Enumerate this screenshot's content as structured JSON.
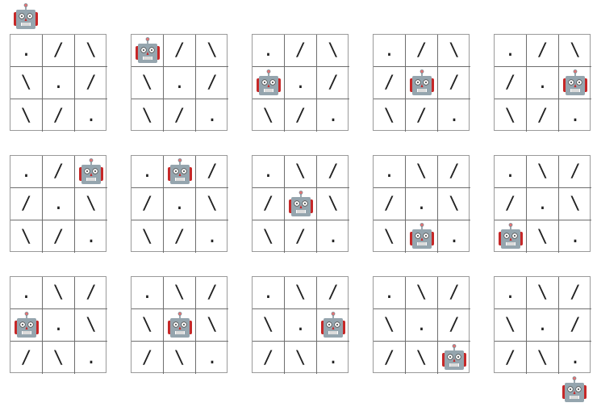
{
  "colors": {
    "grid_line": "#6e6e6e",
    "robot_head": "#95a5ae",
    "robot_ears": "#c62828",
    "text": "#222222"
  },
  "icon": "robot-icon",
  "boards": [
    {
      "cells": [
        [
          ".",
          "/",
          "\\"
        ],
        [
          "\\",
          ".",
          "/"
        ],
        [
          "\\",
          "/",
          "."
        ]
      ],
      "robot": {
        "row": -1,
        "col": 0
      }
    },
    {
      "cells": [
        [
          ".",
          "/",
          "\\"
        ],
        [
          "\\",
          ".",
          "/"
        ],
        [
          "\\",
          "/",
          "."
        ]
      ],
      "robot": {
        "row": 0,
        "col": 0
      }
    },
    {
      "cells": [
        [
          ".",
          "/",
          "\\"
        ],
        [
          "\\",
          ".",
          "/"
        ],
        [
          "\\",
          "/",
          "."
        ]
      ],
      "robot": {
        "row": 1,
        "col": 0
      }
    },
    {
      "cells": [
        [
          ".",
          "/",
          "\\"
        ],
        [
          "/",
          ".",
          "/"
        ],
        [
          "\\",
          "/",
          "."
        ]
      ],
      "robot": {
        "row": 1,
        "col": 1
      }
    },
    {
      "cells": [
        [
          ".",
          "/",
          "\\"
        ],
        [
          "/",
          ".",
          "/"
        ],
        [
          "\\",
          "/",
          "."
        ]
      ],
      "robot": {
        "row": 1,
        "col": 2
      }
    },
    {
      "cells": [
        [
          ".",
          "/",
          "\\"
        ],
        [
          "/",
          ".",
          "\\"
        ],
        [
          "\\",
          "/",
          "."
        ]
      ],
      "robot": {
        "row": 0,
        "col": 2
      }
    },
    {
      "cells": [
        [
          ".",
          "\\",
          "/"
        ],
        [
          "/",
          ".",
          "\\"
        ],
        [
          "\\",
          "/",
          "."
        ]
      ],
      "robot": {
        "row": 0,
        "col": 1
      }
    },
    {
      "cells": [
        [
          ".",
          "\\",
          "/"
        ],
        [
          "/",
          ".",
          "\\"
        ],
        [
          "\\",
          "/",
          "."
        ]
      ],
      "robot": {
        "row": 1,
        "col": 1
      }
    },
    {
      "cells": [
        [
          ".",
          "\\",
          "/"
        ],
        [
          "/",
          ".",
          "\\"
        ],
        [
          "\\",
          "/",
          "."
        ]
      ],
      "robot": {
        "row": 2,
        "col": 1
      }
    },
    {
      "cells": [
        [
          ".",
          "\\",
          "/"
        ],
        [
          "/",
          ".",
          "\\"
        ],
        [
          "/",
          "\\",
          "."
        ]
      ],
      "robot": {
        "row": 2,
        "col": 0
      }
    },
    {
      "cells": [
        [
          ".",
          "\\",
          "/"
        ],
        [
          "/",
          ".",
          "\\"
        ],
        [
          "/",
          "\\",
          "."
        ]
      ],
      "robot": {
        "row": 1,
        "col": 0
      }
    },
    {
      "cells": [
        [
          ".",
          "\\",
          "/"
        ],
        [
          "\\",
          ".",
          "\\"
        ],
        [
          "/",
          "\\",
          "."
        ]
      ],
      "robot": {
        "row": 1,
        "col": 1
      }
    },
    {
      "cells": [
        [
          ".",
          "\\",
          "/"
        ],
        [
          "\\",
          ".",
          "\\"
        ],
        [
          "/",
          "\\",
          "."
        ]
      ],
      "robot": {
        "row": 1,
        "col": 2
      }
    },
    {
      "cells": [
        [
          ".",
          "\\",
          "/"
        ],
        [
          "\\",
          ".",
          "/"
        ],
        [
          "/",
          "\\",
          "."
        ]
      ],
      "robot": {
        "row": 2,
        "col": 2
      }
    },
    {
      "cells": [
        [
          ".",
          "\\",
          "/"
        ],
        [
          "\\",
          ".",
          "/"
        ],
        [
          "/",
          "\\",
          "."
        ]
      ],
      "robot": {
        "row": 3,
        "col": 2
      }
    }
  ]
}
